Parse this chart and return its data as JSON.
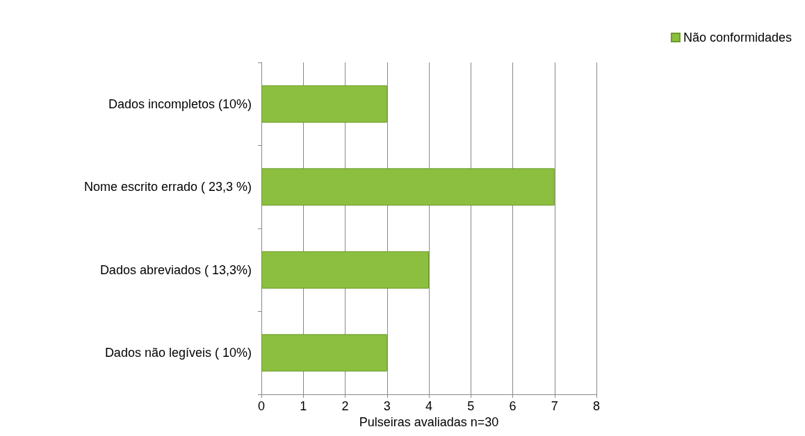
{
  "chart_data": {
    "type": "bar",
    "orientation": "horizontal",
    "xlabel": "Pulseiras avaliadas n=30",
    "categories": [
      "Dados incompletos (10%)",
      "Nome escrito errado ( 23,3 %)",
      "Dados abreviados ( 13,3%)",
      "Dados não legíveis ( 10%)"
    ],
    "series": [
      {
        "name": "Não conformidades",
        "color": "#8cbf3f",
        "values": [
          3,
          7,
          4,
          3
        ]
      }
    ],
    "xlim": [
      0,
      8
    ],
    "xticks": [
      0,
      1,
      2,
      3,
      4,
      5,
      6,
      7,
      8
    ],
    "grid": "x",
    "legend": "top right"
  }
}
